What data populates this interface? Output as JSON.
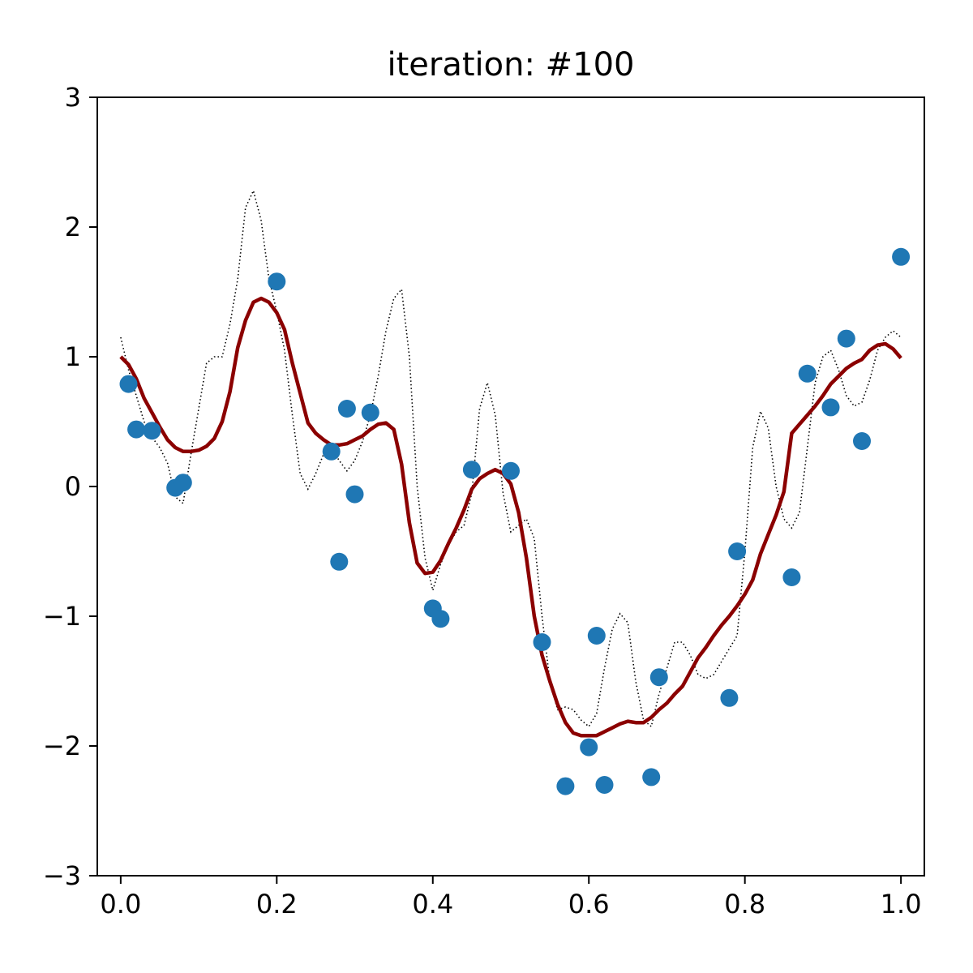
{
  "chart_data": {
    "type": "scatter",
    "title": "iteration: #100",
    "xlabel": "",
    "ylabel": "",
    "xlim": [
      -0.03,
      1.03
    ],
    "ylim": [
      -3,
      3
    ],
    "xticks": [
      0.0,
      0.2,
      0.4,
      0.6,
      0.8,
      1.0
    ],
    "xtick_labels": [
      "0.0",
      "0.2",
      "0.4",
      "0.6",
      "0.8",
      "1.0"
    ],
    "yticks": [
      -3,
      -2,
      -1,
      0,
      1,
      2,
      3
    ],
    "ytick_labels": [
      "−3",
      "−2",
      "−1",
      "0",
      "1",
      "2",
      "3"
    ],
    "grid": false,
    "colors": {
      "points": "#1f77b4",
      "fit": "#8b0000",
      "reference": "#000000"
    },
    "series": [
      {
        "kind": "points",
        "x": [
          0.01,
          0.02,
          0.04,
          0.07,
          0.08,
          0.2,
          0.27,
          0.28,
          0.29,
          0.3,
          0.32,
          0.4,
          0.41,
          0.45,
          0.5,
          0.54,
          0.57,
          0.6,
          0.61,
          0.62,
          0.68,
          0.69,
          0.78,
          0.79,
          0.86,
          0.88,
          0.91,
          0.93,
          0.95,
          1.0
        ],
        "y": [
          0.79,
          0.44,
          0.43,
          -0.01,
          0.03,
          1.58,
          0.27,
          -0.58,
          0.6,
          -0.06,
          0.57,
          -0.94,
          -1.02,
          0.13,
          0.12,
          -1.2,
          -2.31,
          -2.01,
          -1.15,
          -2.3,
          -2.24,
          -1.47,
          -1.63,
          -0.5,
          -0.7,
          0.87,
          0.61,
          1.14,
          0.35,
          1.77
        ]
      },
      {
        "kind": "fit",
        "x": [
          0.0,
          0.01,
          0.02,
          0.03,
          0.04,
          0.05,
          0.06,
          0.07,
          0.08,
          0.09,
          0.1,
          0.11,
          0.12,
          0.13,
          0.14,
          0.15,
          0.16,
          0.17,
          0.18,
          0.19,
          0.2,
          0.21,
          0.22,
          0.23,
          0.24,
          0.25,
          0.26,
          0.27,
          0.28,
          0.29,
          0.3,
          0.31,
          0.32,
          0.33,
          0.34,
          0.35,
          0.36,
          0.37,
          0.38,
          0.39,
          0.4,
          0.41,
          0.42,
          0.43,
          0.44,
          0.45,
          0.46,
          0.47,
          0.48,
          0.49,
          0.5,
          0.51,
          0.52,
          0.53,
          0.54,
          0.55,
          0.56,
          0.57,
          0.58,
          0.59,
          0.6,
          0.61,
          0.62,
          0.63,
          0.64,
          0.65,
          0.66,
          0.67,
          0.68,
          0.69,
          0.7,
          0.71,
          0.72,
          0.73,
          0.74,
          0.75,
          0.76,
          0.77,
          0.78,
          0.79,
          0.8,
          0.81,
          0.82,
          0.83,
          0.84,
          0.85,
          0.86,
          0.87,
          0.88,
          0.89,
          0.9,
          0.91,
          0.92,
          0.93,
          0.94,
          0.95,
          0.96,
          0.97,
          0.98,
          0.99,
          1.0
        ],
        "y": [
          1.0,
          0.94,
          0.83,
          0.68,
          0.57,
          0.46,
          0.36,
          0.3,
          0.27,
          0.27,
          0.28,
          0.31,
          0.37,
          0.5,
          0.73,
          1.07,
          1.28,
          1.42,
          1.45,
          1.42,
          1.34,
          1.21,
          0.95,
          0.72,
          0.49,
          0.41,
          0.36,
          0.32,
          0.32,
          0.33,
          0.36,
          0.39,
          0.44,
          0.48,
          0.49,
          0.44,
          0.17,
          -0.28,
          -0.59,
          -0.67,
          -0.66,
          -0.57,
          -0.44,
          -0.32,
          -0.18,
          -0.02,
          0.06,
          0.1,
          0.13,
          0.1,
          0.02,
          -0.2,
          -0.55,
          -1.0,
          -1.3,
          -1.5,
          -1.68,
          -1.82,
          -1.9,
          -1.92,
          -1.92,
          -1.92,
          -1.89,
          -1.86,
          -1.83,
          -1.81,
          -1.82,
          -1.82,
          -1.78,
          -1.72,
          -1.67,
          -1.6,
          -1.54,
          -1.43,
          -1.32,
          -1.24,
          -1.15,
          -1.07,
          -1.0,
          -0.92,
          -0.83,
          -0.72,
          -0.52,
          -0.37,
          -0.22,
          -0.04,
          0.41,
          0.48,
          0.55,
          0.62,
          0.7,
          0.79,
          0.85,
          0.91,
          0.95,
          0.98,
          1.05,
          1.09,
          1.1,
          1.06,
          0.99
        ]
      },
      {
        "kind": "reference",
        "x": [
          0.0,
          0.01,
          0.02,
          0.03,
          0.04,
          0.05,
          0.06,
          0.07,
          0.08,
          0.09,
          0.1,
          0.11,
          0.12,
          0.13,
          0.14,
          0.15,
          0.16,
          0.17,
          0.18,
          0.19,
          0.2,
          0.21,
          0.22,
          0.23,
          0.24,
          0.25,
          0.26,
          0.27,
          0.28,
          0.29,
          0.3,
          0.31,
          0.32,
          0.33,
          0.34,
          0.35,
          0.36,
          0.37,
          0.38,
          0.39,
          0.4,
          0.41,
          0.42,
          0.43,
          0.44,
          0.45,
          0.46,
          0.47,
          0.48,
          0.49,
          0.5,
          0.51,
          0.52,
          0.53,
          0.54,
          0.55,
          0.56,
          0.57,
          0.58,
          0.59,
          0.6,
          0.61,
          0.62,
          0.63,
          0.64,
          0.65,
          0.66,
          0.67,
          0.68,
          0.69,
          0.7,
          0.71,
          0.72,
          0.73,
          0.74,
          0.75,
          0.76,
          0.77,
          0.78,
          0.79,
          0.8,
          0.81,
          0.82,
          0.83,
          0.84,
          0.85,
          0.86,
          0.87,
          0.88,
          0.89,
          0.9,
          0.91,
          0.92,
          0.93,
          0.94,
          0.95,
          0.96,
          0.97,
          0.98,
          0.99,
          1.0
        ],
        "y": [
          1.15,
          0.9,
          0.7,
          0.5,
          0.38,
          0.3,
          0.18,
          -0.08,
          -0.13,
          0.25,
          0.6,
          0.95,
          1.0,
          1.0,
          1.25,
          1.6,
          2.15,
          2.28,
          2.05,
          1.6,
          1.35,
          1.05,
          0.55,
          0.1,
          -0.02,
          0.1,
          0.25,
          0.3,
          0.2,
          0.12,
          0.2,
          0.35,
          0.55,
          0.85,
          1.2,
          1.45,
          1.52,
          1.0,
          0.0,
          -0.55,
          -0.8,
          -0.6,
          -0.45,
          -0.35,
          -0.3,
          -0.05,
          0.6,
          0.8,
          0.55,
          -0.05,
          -0.35,
          -0.3,
          -0.25,
          -0.4,
          -1.0,
          -1.5,
          -1.72,
          -1.7,
          -1.72,
          -1.8,
          -1.85,
          -1.75,
          -1.4,
          -1.1,
          -0.98,
          -1.05,
          -1.5,
          -1.8,
          -1.85,
          -1.6,
          -1.4,
          -1.2,
          -1.2,
          -1.3,
          -1.45,
          -1.48,
          -1.45,
          -1.35,
          -1.25,
          -1.15,
          -0.5,
          0.3,
          0.58,
          0.45,
          0.0,
          -0.25,
          -0.32,
          -0.2,
          0.3,
          0.8,
          1.0,
          1.05,
          0.9,
          0.7,
          0.62,
          0.65,
          0.82,
          1.05,
          1.15,
          1.2,
          1.15
        ]
      }
    ]
  }
}
